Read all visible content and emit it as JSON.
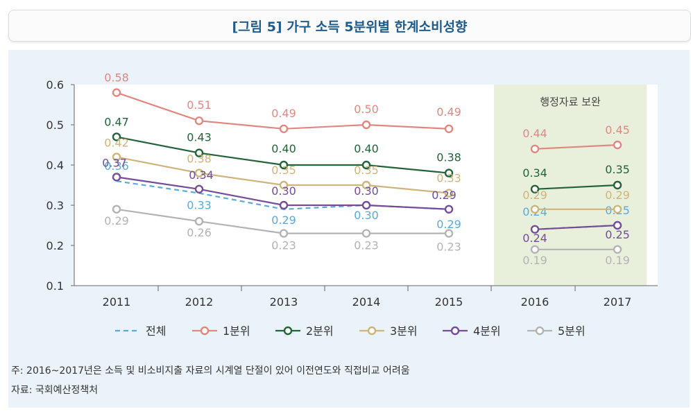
{
  "header": {
    "title": "[그림 5] 가구 소득 5분위별 한계소비성향"
  },
  "chart_data": {
    "type": "line",
    "title": "[그림 5] 가구 소득 5분위별 한계소비성향",
    "categories": [
      "2011",
      "2012",
      "2013",
      "2014",
      "2015",
      "2016",
      "2017"
    ],
    "ylim": [
      0.1,
      0.6
    ],
    "yticks": [
      "0.6",
      "0.5",
      "0.4",
      "0.3",
      "0.2",
      "0.1"
    ],
    "grid": false,
    "legend_position": "bottom",
    "shaded_region": {
      "label": "행정자료 보완",
      "categories": [
        "2016",
        "2017"
      ],
      "color": "#e8f0dc"
    },
    "series": [
      {
        "name": "전체",
        "color": "#5aaad8",
        "dashed": true,
        "markers": false,
        "values": [
          0.36,
          0.33,
          0.29,
          0.3,
          0.29,
          0.24,
          0.25
        ],
        "labels": [
          "0.36",
          "0.33",
          "0.29",
          "0.30",
          "0.29",
          "0.24",
          "0.25"
        ]
      },
      {
        "name": "1분위",
        "color": "#e08780",
        "dashed": false,
        "markers": true,
        "values": [
          0.58,
          0.51,
          0.49,
          0.5,
          0.49,
          0.44,
          0.45
        ],
        "labels": [
          "0.58",
          "0.51",
          "0.49",
          "0.50",
          "0.49",
          "0.44",
          "0.45"
        ]
      },
      {
        "name": "2분위",
        "color": "#236339",
        "dashed": false,
        "markers": true,
        "values": [
          0.47,
          0.43,
          0.4,
          0.4,
          0.38,
          0.34,
          0.35
        ],
        "labels": [
          "0.47",
          "0.43",
          "0.40",
          "0.40",
          "0.38",
          "0.34",
          "0.35"
        ]
      },
      {
        "name": "3분위",
        "color": "#cdb47a",
        "dashed": false,
        "markers": true,
        "values": [
          0.42,
          0.38,
          0.35,
          0.35,
          0.33,
          0.29,
          0.29
        ],
        "labels": [
          "0.42",
          "0.38",
          "0.35",
          "0.35",
          "0.33",
          "0.29",
          "0.29"
        ]
      },
      {
        "name": "4분위",
        "color": "#744c97",
        "dashed": false,
        "markers": true,
        "values": [
          0.37,
          0.34,
          0.3,
          0.3,
          0.29,
          0.24,
          0.25
        ],
        "labels": [
          "0.37",
          "0.34",
          "0.30",
          "0.30",
          "0.29",
          "0.24",
          "0.25"
        ]
      },
      {
        "name": "5분위",
        "color": "#b3b3b3",
        "dashed": false,
        "markers": true,
        "values": [
          0.29,
          0.26,
          0.23,
          0.23,
          0.23,
          0.19,
          0.19
        ],
        "labels": [
          "0.29",
          "0.26",
          "0.23",
          "0.23",
          "0.23",
          "0.19",
          "0.19"
        ]
      }
    ]
  },
  "footer": {
    "note": "주: 2016~2017년은 소득 및 비소비지출 자료의 시계열 단절이 있어 이전연도와 직접비교 어려움",
    "source": "자료: 국회예산정책처"
  }
}
